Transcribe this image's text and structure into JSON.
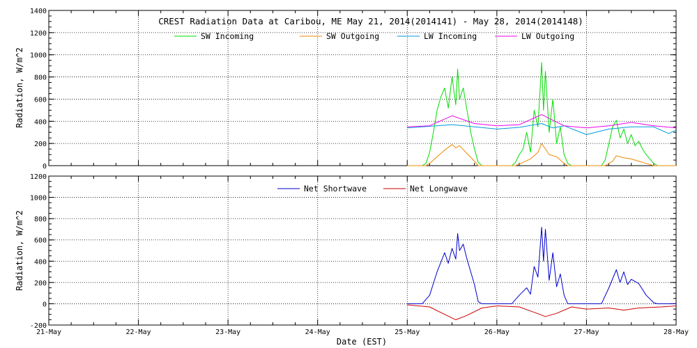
{
  "chart_data": [
    {
      "type": "line",
      "title": "CREST Radiation Data at Caribou, ME   May 21, 2014(2014141) - May 28, 2014(2014148)",
      "xlabel": "",
      "ylabel": "Radiation, W/m^2",
      "ylim": [
        0,
        1400
      ],
      "yticks": [
        0,
        200,
        400,
        600,
        800,
        1000,
        1200,
        1400
      ],
      "xlim": [
        "2014-05-21T00:00",
        "2014-05-28T00:00"
      ],
      "xticks": [
        "21-May",
        "22-May",
        "23-May",
        "24-May",
        "25-May",
        "26-May",
        "27-May",
        "28-May"
      ],
      "grid": true,
      "legend_placement": "top",
      "series": [
        {
          "name": "SW Incoming",
          "color": "#00dd00",
          "points": [
            [
              "2014-05-25T00:00",
              0
            ],
            [
              "2014-05-25T04:00",
              0
            ],
            [
              "2014-05-25T05:00",
              20
            ],
            [
              "2014-05-25T06:00",
              120
            ],
            [
              "2014-05-25T07:00",
              300
            ],
            [
              "2014-05-25T08:00",
              500
            ],
            [
              "2014-05-25T09:00",
              620
            ],
            [
              "2014-05-25T10:00",
              700
            ],
            [
              "2014-05-25T11:00",
              520
            ],
            [
              "2014-05-25T12:00",
              800
            ],
            [
              "2014-05-25T13:00",
              550
            ],
            [
              "2014-05-25T13:30",
              870
            ],
            [
              "2014-05-25T14:00",
              600
            ],
            [
              "2014-05-25T15:00",
              700
            ],
            [
              "2014-05-25T16:00",
              500
            ],
            [
              "2014-05-25T17:00",
              300
            ],
            [
              "2014-05-25T18:00",
              150
            ],
            [
              "2014-05-25T19:00",
              30
            ],
            [
              "2014-05-25T20:00",
              0
            ],
            [
              "2014-05-26T04:00",
              0
            ],
            [
              "2014-05-26T05:00",
              30
            ],
            [
              "2014-05-26T06:00",
              100
            ],
            [
              "2014-05-26T07:00",
              150
            ],
            [
              "2014-05-26T08:00",
              300
            ],
            [
              "2014-05-26T09:00",
              120
            ],
            [
              "2014-05-26T10:00",
              500
            ],
            [
              "2014-05-26T11:00",
              350
            ],
            [
              "2014-05-26T12:00",
              930
            ],
            [
              "2014-05-26T12:30",
              500
            ],
            [
              "2014-05-26T13:00",
              850
            ],
            [
              "2014-05-26T14:00",
              300
            ],
            [
              "2014-05-26T15:00",
              600
            ],
            [
              "2014-05-26T16:00",
              200
            ],
            [
              "2014-05-26T17:00",
              350
            ],
            [
              "2014-05-26T18:00",
              100
            ],
            [
              "2014-05-26T19:00",
              20
            ],
            [
              "2014-05-26T20:00",
              0
            ],
            [
              "2014-05-27T04:00",
              0
            ],
            [
              "2014-05-27T05:00",
              50
            ],
            [
              "2014-05-27T06:00",
              200
            ],
            [
              "2014-05-27T07:00",
              350
            ],
            [
              "2014-05-27T08:00",
              410
            ],
            [
              "2014-05-27T09:00",
              250
            ],
            [
              "2014-05-27T10:00",
              330
            ],
            [
              "2014-05-27T11:00",
              200
            ],
            [
              "2014-05-27T12:00",
              280
            ],
            [
              "2014-05-27T13:00",
              180
            ],
            [
              "2014-05-27T14:00",
              220
            ],
            [
              "2014-05-27T15:00",
              150
            ],
            [
              "2014-05-27T16:00",
              100
            ],
            [
              "2014-05-27T17:00",
              60
            ],
            [
              "2014-05-27T18:00",
              20
            ],
            [
              "2014-05-27T19:00",
              0
            ],
            [
              "2014-05-28T00:00",
              0
            ]
          ]
        },
        {
          "name": "SW Outgoing",
          "color": "#ee8800",
          "points": [
            [
              "2014-05-25T00:00",
              0
            ],
            [
              "2014-05-25T05:00",
              0
            ],
            [
              "2014-05-25T06:00",
              20
            ],
            [
              "2014-05-25T08:00",
              80
            ],
            [
              "2014-05-25T10:00",
              140
            ],
            [
              "2014-05-25T12:00",
              190
            ],
            [
              "2014-05-25T13:00",
              160
            ],
            [
              "2014-05-25T14:00",
              180
            ],
            [
              "2014-05-25T16:00",
              110
            ],
            [
              "2014-05-25T18:00",
              40
            ],
            [
              "2014-05-25T19:00",
              0
            ],
            [
              "2014-05-26T05:00",
              0
            ],
            [
              "2014-05-26T07:00",
              30
            ],
            [
              "2014-05-26T09:00",
              60
            ],
            [
              "2014-05-26T11:00",
              120
            ],
            [
              "2014-05-26T12:00",
              200
            ],
            [
              "2014-05-26T13:00",
              150
            ],
            [
              "2014-05-26T14:00",
              100
            ],
            [
              "2014-05-26T16:00",
              80
            ],
            [
              "2014-05-26T18:00",
              20
            ],
            [
              "2014-05-26T19:00",
              0
            ],
            [
              "2014-05-27T05:00",
              0
            ],
            [
              "2014-05-27T07:00",
              40
            ],
            [
              "2014-05-27T08:00",
              90
            ],
            [
              "2014-05-27T10:00",
              70
            ],
            [
              "2014-05-27T12:00",
              60
            ],
            [
              "2014-05-27T14:00",
              40
            ],
            [
              "2014-05-27T16:00",
              20
            ],
            [
              "2014-05-27T18:00",
              0
            ],
            [
              "2014-05-28T00:00",
              0
            ]
          ]
        },
        {
          "name": "LW Incoming",
          "color": "#0099dd",
          "points": [
            [
              "2014-05-25T00:00",
              340
            ],
            [
              "2014-05-25T06:00",
              355
            ],
            [
              "2014-05-25T12:00",
              370
            ],
            [
              "2014-05-25T18:00",
              350
            ],
            [
              "2014-05-26T00:00",
              330
            ],
            [
              "2014-05-26T06:00",
              345
            ],
            [
              "2014-05-26T12:00",
              380
            ],
            [
              "2014-05-26T15:00",
              340
            ],
            [
              "2014-05-26T18:00",
              360
            ],
            [
              "2014-05-27T00:00",
              280
            ],
            [
              "2014-05-27T06:00",
              330
            ],
            [
              "2014-05-27T12:00",
              350
            ],
            [
              "2014-05-27T18:00",
              350
            ],
            [
              "2014-05-27T22:00",
              290
            ],
            [
              "2014-05-28T00:00",
              320
            ]
          ]
        },
        {
          "name": "LW Outgoing",
          "color": "#ee00ee",
          "points": [
            [
              "2014-05-25T00:00",
              350
            ],
            [
              "2014-05-25T06:00",
              360
            ],
            [
              "2014-05-25T12:00",
              450
            ],
            [
              "2014-05-25T18:00",
              380
            ],
            [
              "2014-05-26T00:00",
              360
            ],
            [
              "2014-05-26T06:00",
              370
            ],
            [
              "2014-05-26T12:00",
              460
            ],
            [
              "2014-05-26T18:00",
              360
            ],
            [
              "2014-05-27T00:00",
              340
            ],
            [
              "2014-05-27T06:00",
              360
            ],
            [
              "2014-05-27T12:00",
              390
            ],
            [
              "2014-05-27T18:00",
              360
            ],
            [
              "2014-05-28T00:00",
              340
            ]
          ]
        }
      ]
    },
    {
      "type": "line",
      "title": "",
      "xlabel": "Date (EST)",
      "ylabel": "Radiation, W/m^2",
      "ylim": [
        -200,
        1200
      ],
      "yticks": [
        -200,
        0,
        200,
        400,
        600,
        800,
        1000,
        1200
      ],
      "xlim": [
        "2014-05-21T00:00",
        "2014-05-28T00:00"
      ],
      "xticks": [
        "21-May",
        "22-May",
        "23-May",
        "24-May",
        "25-May",
        "26-May",
        "27-May",
        "28-May"
      ],
      "grid": true,
      "legend_placement": "top",
      "series": [
        {
          "name": "Net Shortwave",
          "color": "#0000cc",
          "points": [
            [
              "2014-05-25T00:00",
              0
            ],
            [
              "2014-05-25T04:00",
              0
            ],
            [
              "2014-05-25T06:00",
              80
            ],
            [
              "2014-05-25T08:00",
              300
            ],
            [
              "2014-05-25T10:00",
              480
            ],
            [
              "2014-05-25T11:00",
              380
            ],
            [
              "2014-05-25T12:00",
              520
            ],
            [
              "2014-05-25T13:00",
              420
            ],
            [
              "2014-05-25T13:30",
              660
            ],
            [
              "2014-05-25T14:00",
              500
            ],
            [
              "2014-05-25T15:00",
              560
            ],
            [
              "2014-05-25T16:00",
              420
            ],
            [
              "2014-05-25T18:00",
              180
            ],
            [
              "2014-05-25T19:00",
              20
            ],
            [
              "2014-05-25T20:00",
              0
            ],
            [
              "2014-05-26T04:00",
              0
            ],
            [
              "2014-05-26T06:00",
              80
            ],
            [
              "2014-05-26T08:00",
              150
            ],
            [
              "2014-05-26T09:00",
              90
            ],
            [
              "2014-05-26T10:00",
              350
            ],
            [
              "2014-05-26T11:00",
              250
            ],
            [
              "2014-05-26T12:00",
              720
            ],
            [
              "2014-05-26T12:30",
              400
            ],
            [
              "2014-05-26T13:00",
              700
            ],
            [
              "2014-05-26T14:00",
              220
            ],
            [
              "2014-05-26T15:00",
              480
            ],
            [
              "2014-05-26T16:00",
              160
            ],
            [
              "2014-05-26T17:00",
              280
            ],
            [
              "2014-05-26T18:00",
              80
            ],
            [
              "2014-05-26T19:00",
              0
            ],
            [
              "2014-05-27T04:00",
              0
            ],
            [
              "2014-05-27T06:00",
              150
            ],
            [
              "2014-05-27T08:00",
              320
            ],
            [
              "2014-05-27T09:00",
              200
            ],
            [
              "2014-05-27T10:00",
              300
            ],
            [
              "2014-05-27T11:00",
              180
            ],
            [
              "2014-05-27T12:00",
              230
            ],
            [
              "2014-05-27T14:00",
              190
            ],
            [
              "2014-05-27T16:00",
              80
            ],
            [
              "2014-05-27T18:00",
              10
            ],
            [
              "2014-05-27T19:00",
              0
            ],
            [
              "2014-05-28T00:00",
              0
            ]
          ]
        },
        {
          "name": "Net Longwave",
          "color": "#cc0000",
          "points": [
            [
              "2014-05-25T00:00",
              -10
            ],
            [
              "2014-05-25T06:00",
              -30
            ],
            [
              "2014-05-25T10:00",
              -100
            ],
            [
              "2014-05-25T13:00",
              -150
            ],
            [
              "2014-05-25T16:00",
              -110
            ],
            [
              "2014-05-25T20:00",
              -40
            ],
            [
              "2014-05-26T00:00",
              -20
            ],
            [
              "2014-05-26T06:00",
              -30
            ],
            [
              "2014-05-26T10:00",
              -80
            ],
            [
              "2014-05-26T13:00",
              -120
            ],
            [
              "2014-05-26T16:00",
              -90
            ],
            [
              "2014-05-26T20:00",
              -30
            ],
            [
              "2014-05-27T00:00",
              -50
            ],
            [
              "2014-05-27T06:00",
              -40
            ],
            [
              "2014-05-27T10:00",
              -60
            ],
            [
              "2014-05-27T14:00",
              -40
            ],
            [
              "2014-05-27T20:00",
              -30
            ],
            [
              "2014-05-28T00:00",
              -20
            ]
          ]
        }
      ]
    }
  ]
}
